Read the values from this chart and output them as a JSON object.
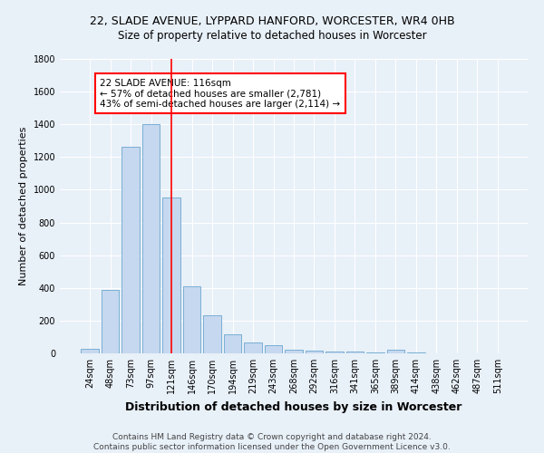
{
  "title1": "22, SLADE AVENUE, LYPPARD HANFORD, WORCESTER, WR4 0HB",
  "title2": "Size of property relative to detached houses in Worcester",
  "xlabel": "Distribution of detached houses by size in Worcester",
  "ylabel": "Number of detached properties",
  "footer1": "Contains HM Land Registry data © Crown copyright and database right 2024.",
  "footer2": "Contains public sector information licensed under the Open Government Licence v3.0.",
  "bar_labels": [
    "24sqm",
    "48sqm",
    "73sqm",
    "97sqm",
    "121sqm",
    "146sqm",
    "170sqm",
    "194sqm",
    "219sqm",
    "243sqm",
    "268sqm",
    "292sqm",
    "316sqm",
    "341sqm",
    "365sqm",
    "389sqm",
    "414sqm",
    "438sqm",
    "462sqm",
    "487sqm",
    "511sqm"
  ],
  "bar_values": [
    25,
    390,
    1265,
    1400,
    955,
    410,
    230,
    115,
    65,
    50,
    20,
    15,
    10,
    12,
    8,
    20,
    3,
    2,
    2,
    2,
    2
  ],
  "bar_color": "#c5d8ef",
  "bar_edge_color": "#7aafd4",
  "bg_color": "#e8f0f8",
  "grid_color": "#ffffff",
  "vline_x": 4,
  "vline_color": "red",
  "annotation_text": "22 SLADE AVENUE: 116sqm\n← 57% of detached houses are smaller (2,781)\n43% of semi-detached houses are larger (2,114) →",
  "annotation_box_color": "white",
  "annotation_box_edge": "red",
  "ylim": [
    0,
    1800
  ],
  "yticks": [
    0,
    200,
    400,
    600,
    800,
    1000,
    1200,
    1400,
    1600,
    1800
  ],
  "title1_fontsize": 9,
  "title2_fontsize": 8.5,
  "xlabel_fontsize": 9,
  "ylabel_fontsize": 8,
  "tick_fontsize": 7,
  "footer_fontsize": 6.5,
  "annot_fontsize": 7.5
}
